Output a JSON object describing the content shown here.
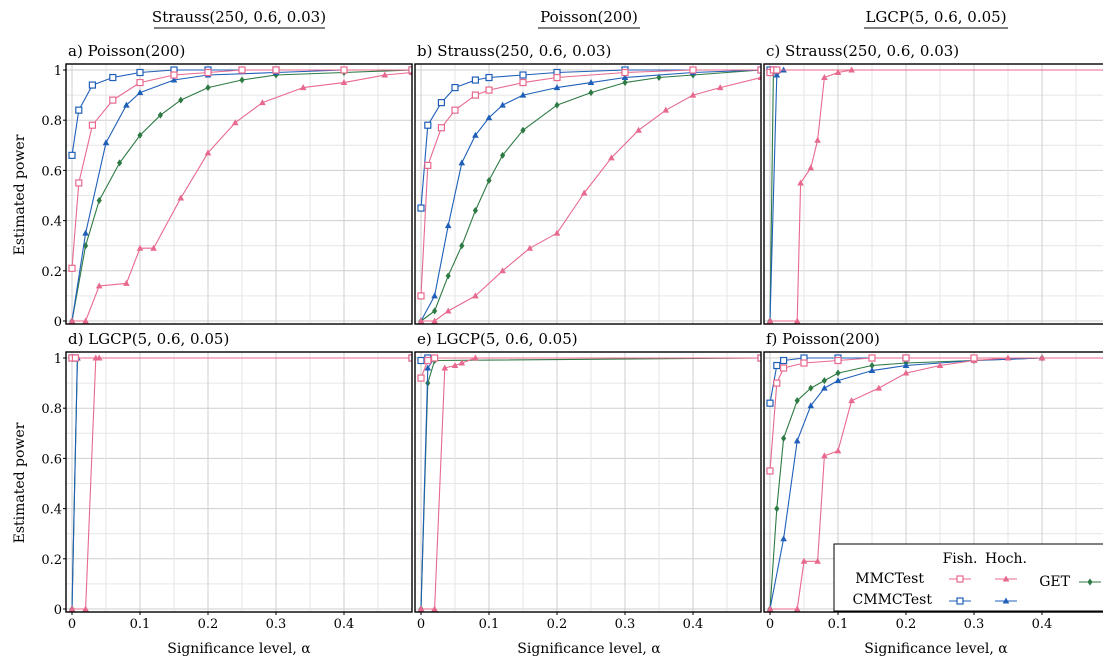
{
  "figure": {
    "column_headers": [
      "Strauss(250, 0.6, 0.03)",
      "Poisson(200)",
      "LGCP(5, 0.6, 0.05)"
    ],
    "ylabel": "Estimated power",
    "xlabel": "Significance level, α",
    "xticks": [
      "0",
      "0.1",
      "0.2",
      "0.3",
      "0.4"
    ],
    "yticks": [
      "0",
      "0.2",
      "0.4",
      "0.6",
      "0.8",
      "1"
    ],
    "legend": {
      "col_fish": "Fish.",
      "col_hoch": "Hoch.",
      "row_mmc": "MMCTest",
      "row_cmmc": "CMMCTest",
      "get_label": "GET"
    },
    "colors": {
      "mmc": "#e8698e",
      "cmmc": "#1f5fb8",
      "get": "#2e7a44"
    }
  },
  "chart_data": [
    {
      "type": "line",
      "title": "a) Poisson(200)",
      "xlim": [
        0,
        0.5
      ],
      "ylim": [
        0,
        1
      ],
      "grid": true,
      "series": [
        {
          "name": "MMCTest Fish.",
          "marker": "square",
          "x": [
            0.0,
            0.01,
            0.03,
            0.06,
            0.1,
            0.15,
            0.2,
            0.25,
            0.3,
            0.4,
            0.5
          ],
          "y": [
            0.21,
            0.55,
            0.78,
            0.88,
            0.95,
            0.98,
            0.99,
            1.0,
            1.0,
            1.0,
            1.0
          ]
        },
        {
          "name": "CMMCTest Fish.",
          "marker": "square",
          "x": [
            0.0,
            0.01,
            0.03,
            0.06,
            0.1,
            0.15,
            0.2,
            0.3,
            0.5
          ],
          "y": [
            0.66,
            0.84,
            0.94,
            0.97,
            0.99,
            1.0,
            1.0,
            1.0,
            1.0
          ]
        },
        {
          "name": "MMCTest Hoch.",
          "marker": "triangle",
          "x": [
            0.0,
            0.02,
            0.04,
            0.08,
            0.1,
            0.12,
            0.16,
            0.2,
            0.24,
            0.28,
            0.34,
            0.4,
            0.46,
            0.5
          ],
          "y": [
            0.0,
            0.0,
            0.14,
            0.15,
            0.29,
            0.29,
            0.49,
            0.67,
            0.79,
            0.87,
            0.93,
            0.95,
            0.98,
            0.99
          ]
        },
        {
          "name": "CMMCTest Hoch.",
          "marker": "triangle",
          "x": [
            0.0,
            0.02,
            0.05,
            0.08,
            0.1,
            0.15,
            0.2,
            0.3,
            0.4,
            0.5
          ],
          "y": [
            0.0,
            0.35,
            0.71,
            0.86,
            0.91,
            0.96,
            0.98,
            0.99,
            1.0,
            1.0
          ]
        },
        {
          "name": "GET",
          "marker": "diamond",
          "x": [
            0.0,
            0.02,
            0.04,
            0.07,
            0.1,
            0.13,
            0.16,
            0.2,
            0.25,
            0.3,
            0.4,
            0.5
          ],
          "y": [
            0.0,
            0.3,
            0.48,
            0.63,
            0.74,
            0.82,
            0.88,
            0.93,
            0.96,
            0.98,
            0.99,
            1.0
          ]
        }
      ]
    },
    {
      "type": "line",
      "title": "b) Strauss(250, 0.6, 0.03)",
      "xlim": [
        0,
        0.5
      ],
      "ylim": [
        0,
        1
      ],
      "grid": true,
      "series": [
        {
          "name": "MMCTest Fish.",
          "marker": "square",
          "x": [
            0.0,
            0.01,
            0.03,
            0.05,
            0.08,
            0.1,
            0.15,
            0.2,
            0.3,
            0.4,
            0.5
          ],
          "y": [
            0.1,
            0.62,
            0.77,
            0.84,
            0.9,
            0.92,
            0.95,
            0.97,
            0.99,
            1.0,
            1.0
          ]
        },
        {
          "name": "CMMCTest Fish.",
          "marker": "square",
          "x": [
            0.0,
            0.01,
            0.03,
            0.05,
            0.08,
            0.1,
            0.15,
            0.2,
            0.3,
            0.5
          ],
          "y": [
            0.45,
            0.78,
            0.87,
            0.93,
            0.96,
            0.97,
            0.98,
            0.99,
            1.0,
            1.0
          ]
        },
        {
          "name": "MMCTest Hoch.",
          "marker": "triangle",
          "x": [
            0.0,
            0.02,
            0.04,
            0.08,
            0.12,
            0.16,
            0.2,
            0.24,
            0.28,
            0.32,
            0.36,
            0.4,
            0.44,
            0.5
          ],
          "y": [
            0.0,
            0.0,
            0.04,
            0.1,
            0.2,
            0.29,
            0.35,
            0.51,
            0.65,
            0.76,
            0.84,
            0.9,
            0.93,
            0.97
          ]
        },
        {
          "name": "CMMCTest Hoch.",
          "marker": "triangle",
          "x": [
            0.0,
            0.02,
            0.04,
            0.06,
            0.08,
            0.1,
            0.12,
            0.15,
            0.2,
            0.25,
            0.3,
            0.4,
            0.5
          ],
          "y": [
            0.0,
            0.1,
            0.38,
            0.63,
            0.74,
            0.81,
            0.86,
            0.9,
            0.93,
            0.95,
            0.97,
            0.99,
            1.0
          ]
        },
        {
          "name": "GET",
          "marker": "diamond",
          "x": [
            0.0,
            0.02,
            0.04,
            0.06,
            0.08,
            0.1,
            0.12,
            0.15,
            0.2,
            0.25,
            0.3,
            0.35,
            0.4,
            0.5
          ],
          "y": [
            0.0,
            0.04,
            0.18,
            0.3,
            0.44,
            0.56,
            0.66,
            0.76,
            0.86,
            0.91,
            0.95,
            0.97,
            0.98,
            1.0
          ]
        }
      ]
    },
    {
      "type": "line",
      "title": "c) Strauss(250, 0.6, 0.03)",
      "xlim": [
        0,
        0.5
      ],
      "ylim": [
        0,
        1
      ],
      "grid": true,
      "series": [
        {
          "name": "MMCTest Fish.",
          "marker": "square",
          "x": [
            0.0,
            0.005,
            0.01,
            0.5
          ],
          "y": [
            0.99,
            1.0,
            1.0,
            1.0
          ]
        },
        {
          "name": "CMMCTest Fish.",
          "marker": "square",
          "x": [
            0.0,
            0.005,
            0.5
          ],
          "y": [
            1.0,
            1.0,
            1.0
          ]
        },
        {
          "name": "MMCTest Hoch.",
          "marker": "triangle",
          "x": [
            0.0,
            0.04,
            0.045,
            0.06,
            0.07,
            0.08,
            0.1,
            0.12,
            0.5
          ],
          "y": [
            0.0,
            0.0,
            0.55,
            0.61,
            0.72,
            0.97,
            0.99,
            1.0,
            1.0
          ]
        },
        {
          "name": "CMMCTest Hoch.",
          "marker": "triangle",
          "x": [
            0.0,
            0.01,
            0.02,
            0.5
          ],
          "y": [
            0.0,
            0.98,
            1.0,
            1.0
          ]
        },
        {
          "name": "GET",
          "marker": "diamond",
          "x": [
            0.0,
            0.005,
            0.01,
            0.5
          ],
          "y": [
            0.0,
            0.99,
            1.0,
            1.0
          ]
        }
      ]
    },
    {
      "type": "line",
      "title": "d) LGCP(5, 0.6, 0.05)",
      "xlim": [
        0,
        0.5
      ],
      "ylim": [
        0,
        1
      ],
      "grid": true,
      "series": [
        {
          "name": "MMCTest Fish.",
          "marker": "square",
          "x": [
            0.0,
            0.005,
            0.5
          ],
          "y": [
            1.0,
            1.0,
            1.0
          ]
        },
        {
          "name": "CMMCTest Fish.",
          "marker": "square",
          "x": [
            0.0,
            0.005,
            0.5
          ],
          "y": [
            1.0,
            1.0,
            1.0
          ]
        },
        {
          "name": "MMCTest Hoch.",
          "marker": "triangle",
          "x": [
            0.0,
            0.02,
            0.035,
            0.04,
            0.5
          ],
          "y": [
            0.0,
            0.0,
            1.0,
            1.0,
            1.0
          ]
        },
        {
          "name": "CMMCTest Hoch.",
          "marker": "triangle",
          "x": [
            0.0,
            0.008,
            0.5
          ],
          "y": [
            0.0,
            1.0,
            1.0
          ]
        },
        {
          "name": "GET",
          "marker": "diamond",
          "x": [
            0.0,
            0.008,
            0.5
          ],
          "y": [
            0.0,
            1.0,
            1.0
          ]
        }
      ]
    },
    {
      "type": "line",
      "title": "e) LGCP(5, 0.6, 0.05)",
      "xlim": [
        0,
        0.5
      ],
      "ylim": [
        0,
        1
      ],
      "grid": true,
      "series": [
        {
          "name": "MMCTest Fish.",
          "marker": "square",
          "x": [
            0.0,
            0.01,
            0.02,
            0.5
          ],
          "y": [
            0.92,
            0.99,
            1.0,
            1.0
          ]
        },
        {
          "name": "CMMCTest Fish.",
          "marker": "square",
          "x": [
            0.0,
            0.01,
            0.5
          ],
          "y": [
            0.99,
            1.0,
            1.0
          ]
        },
        {
          "name": "MMCTest Hoch.",
          "marker": "triangle",
          "x": [
            0.0,
            0.02,
            0.035,
            0.05,
            0.06,
            0.08,
            0.5
          ],
          "y": [
            0.0,
            0.0,
            0.96,
            0.97,
            0.98,
            1.0,
            1.0
          ]
        },
        {
          "name": "CMMCTest Hoch.",
          "marker": "triangle",
          "x": [
            0.0,
            0.01,
            0.02,
            0.5
          ],
          "y": [
            0.0,
            0.96,
            1.0,
            1.0
          ]
        },
        {
          "name": "GET",
          "marker": "diamond",
          "x": [
            0.0,
            0.01,
            0.02,
            0.5
          ],
          "y": [
            0.0,
            0.9,
            0.99,
            1.0
          ]
        }
      ]
    },
    {
      "type": "line",
      "title": "f) Poisson(200)",
      "xlim": [
        0,
        0.5
      ],
      "ylim": [
        0,
        1
      ],
      "grid": true,
      "legend": "bottom-right",
      "series": [
        {
          "name": "MMCTest Fish.",
          "marker": "square",
          "x": [
            0.0,
            0.01,
            0.02,
            0.05,
            0.1,
            0.15,
            0.2,
            0.3,
            0.5
          ],
          "y": [
            0.55,
            0.9,
            0.96,
            0.98,
            0.99,
            1.0,
            1.0,
            1.0,
            1.0
          ]
        },
        {
          "name": "CMMCTest Fish.",
          "marker": "square",
          "x": [
            0.0,
            0.01,
            0.02,
            0.05,
            0.1,
            0.2,
            0.5
          ],
          "y": [
            0.82,
            0.97,
            0.99,
            1.0,
            1.0,
            1.0,
            1.0
          ]
        },
        {
          "name": "MMCTest Hoch.",
          "marker": "triangle",
          "x": [
            0.0,
            0.04,
            0.05,
            0.07,
            0.08,
            0.1,
            0.12,
            0.16,
            0.2,
            0.25,
            0.3,
            0.35,
            0.4,
            0.5
          ],
          "y": [
            0.0,
            0.0,
            0.19,
            0.19,
            0.61,
            0.63,
            0.83,
            0.88,
            0.94,
            0.97,
            0.99,
            1.0,
            1.0,
            1.0
          ]
        },
        {
          "name": "CMMCTest Hoch.",
          "marker": "triangle",
          "x": [
            0.0,
            0.02,
            0.04,
            0.06,
            0.08,
            0.1,
            0.15,
            0.2,
            0.3,
            0.4,
            0.5
          ],
          "y": [
            0.0,
            0.28,
            0.67,
            0.81,
            0.88,
            0.91,
            0.95,
            0.97,
            0.99,
            1.0,
            1.0
          ]
        },
        {
          "name": "GET",
          "marker": "diamond",
          "x": [
            0.0,
            0.01,
            0.02,
            0.04,
            0.06,
            0.08,
            0.1,
            0.15,
            0.2,
            0.3,
            0.4,
            0.5
          ],
          "y": [
            0.0,
            0.4,
            0.68,
            0.83,
            0.88,
            0.91,
            0.94,
            0.97,
            0.98,
            0.99,
            1.0,
            1.0
          ]
        }
      ]
    }
  ]
}
